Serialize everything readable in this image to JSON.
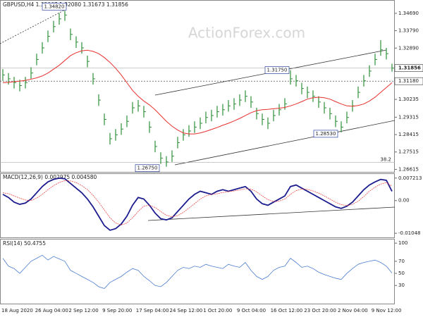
{
  "chart_data": [
    {
      "type": "ohlc",
      "title": "GBPUSD,H4  1.32067 1.32080 1.31673 1.31856",
      "watermark": "ActionForex.com",
      "color": "#2f8f3a",
      "close": [
        1.315,
        1.313,
        1.311,
        1.3095,
        1.311,
        1.316,
        1.323,
        1.329,
        1.335,
        1.34,
        1.344,
        1.346,
        1.336,
        1.332,
        1.329,
        1.322,
        1.313,
        1.302,
        1.292,
        1.282,
        1.284,
        1.287,
        1.291,
        1.298,
        1.299,
        1.296,
        1.288,
        1.278,
        1.272,
        1.27,
        1.273,
        1.28,
        1.284,
        1.286,
        1.288,
        1.29,
        1.293,
        1.294,
        1.296,
        1.297,
        1.299,
        1.3,
        1.302,
        1.304,
        1.301,
        1.295,
        1.292,
        1.29,
        1.294,
        1.297,
        1.3,
        1.313,
        1.312,
        1.308,
        1.306,
        1.304,
        1.301,
        1.298,
        1.295,
        1.291,
        1.288,
        1.293,
        1.299,
        1.306,
        1.312,
        1.317,
        1.323,
        1.328,
        1.326,
        1.31856
      ],
      "high": [
        1.318,
        1.316,
        1.314,
        1.3125,
        1.314,
        1.319,
        1.326,
        1.332,
        1.338,
        1.343,
        1.347,
        1.3482,
        1.339,
        1.335,
        1.332,
        1.325,
        1.316,
        1.305,
        1.295,
        1.285,
        1.287,
        1.29,
        1.294,
        1.301,
        1.302,
        1.299,
        1.291,
        1.281,
        1.275,
        1.273,
        1.276,
        1.283,
        1.287,
        1.289,
        1.291,
        1.293,
        1.296,
        1.297,
        1.299,
        1.3,
        1.302,
        1.303,
        1.305,
        1.307,
        1.304,
        1.298,
        1.295,
        1.293,
        1.297,
        1.3,
        1.303,
        1.3175,
        1.315,
        1.311,
        1.309,
        1.307,
        1.304,
        1.301,
        1.298,
        1.294,
        1.291,
        1.296,
        1.302,
        1.309,
        1.315,
        1.32,
        1.326,
        1.333,
        1.329,
        1.3208
      ],
      "low": [
        1.312,
        1.31,
        1.308,
        1.3065,
        1.308,
        1.313,
        1.32,
        1.326,
        1.332,
        1.337,
        1.341,
        1.343,
        1.333,
        1.329,
        1.326,
        1.319,
        1.31,
        1.299,
        1.289,
        1.279,
        1.281,
        1.284,
        1.288,
        1.295,
        1.296,
        1.293,
        1.285,
        1.275,
        1.269,
        1.2675,
        1.27,
        1.277,
        1.281,
        1.283,
        1.285,
        1.287,
        1.29,
        1.291,
        1.293,
        1.294,
        1.296,
        1.297,
        1.299,
        1.301,
        1.298,
        1.292,
        1.289,
        1.287,
        1.291,
        1.294,
        1.297,
        1.31,
        1.309,
        1.305,
        1.303,
        1.301,
        1.298,
        1.295,
        1.292,
        1.288,
        1.2853,
        1.29,
        1.296,
        1.303,
        1.309,
        1.314,
        1.32,
        1.325,
        1.323,
        1.3167
      ],
      "ma": {
        "color": "#e8302e",
        "values": [
          1.311,
          1.3112,
          1.3115,
          1.3118,
          1.3122,
          1.3128,
          1.3135,
          1.3145,
          1.316,
          1.318,
          1.32,
          1.3225,
          1.325,
          1.3265,
          1.3275,
          1.3278,
          1.3272,
          1.326,
          1.324,
          1.3215,
          1.3185,
          1.315,
          1.311,
          1.307,
          1.304,
          1.3015,
          1.2995,
          1.297,
          1.294,
          1.291,
          1.2885,
          1.2865,
          1.285,
          1.2845,
          1.2845,
          1.285,
          1.2858,
          1.2868,
          1.2878,
          1.289,
          1.29,
          1.2912,
          1.2925,
          1.294,
          1.2955,
          1.2965,
          1.297,
          1.2972,
          1.2975,
          1.2978,
          1.2982,
          1.299,
          1.3,
          1.3012,
          1.3025,
          1.3032,
          1.3035,
          1.3032,
          1.3025,
          1.3012,
          1.3,
          1.299,
          1.2988,
          1.2992,
          1.3,
          1.3015,
          1.3035,
          1.306,
          1.3085,
          1.311
        ]
      },
      "ylim": [
        1.26485,
        1.35341
      ],
      "yticks": [
        {
          "value": 1.3469,
          "label": "1.34690"
        },
        {
          "value": 1.3379,
          "label": "1.33790"
        },
        {
          "value": 1.3289,
          "label": "1.32890"
        },
        1.30235,
        1.29315,
        1.28415,
        1.27515,
        1.26615
      ],
      "last_price": 1.31856,
      "level": {
        "value": 1.3118,
        "label": "1.31180"
      },
      "fib": {
        "value": 1.2697,
        "label": "38.2"
      },
      "annotations": [
        {
          "value": 1.3482,
          "label": "1.34820"
        },
        {
          "value": 1.3175,
          "label": "1.31750"
        },
        {
          "value": 1.2853,
          "label": "1.28530"
        },
        {
          "value": 1.2675,
          "label": "1.26750"
        }
      ]
    },
    {
      "type": "line",
      "title": "MACD(12,26,9) 0.002975 0.004580",
      "series": [
        {
          "color": "#1c1c8f",
          "values": [
            0.002,
            0.001,
            -0.0005,
            -0.0012,
            -0.0008,
            0.0005,
            0.0025,
            0.0045,
            0.006,
            0.0068,
            0.0072,
            0.007,
            0.0055,
            0.004,
            0.0025,
            0.0005,
            -0.002,
            -0.005,
            -0.008,
            -0.0095,
            -0.009,
            -0.0075,
            -0.005,
            -0.0015,
            0.001,
            0.0005,
            -0.0015,
            -0.004,
            -0.0058,
            -0.0062,
            -0.0055,
            -0.0035,
            -0.0015,
            0.0005,
            0.002,
            0.003,
            0.0025,
            0.002,
            0.003,
            0.0035,
            0.003,
            0.0035,
            0.004,
            0.0045,
            0.003,
            0.0005,
            -0.001,
            -0.0015,
            -0.0005,
            0.0005,
            0.0015,
            0.0045,
            0.005,
            0.004,
            0.003,
            0.002,
            0.001,
            0.0,
            -0.001,
            -0.002,
            -0.0025,
            -0.0018,
            -0.0005,
            0.0015,
            0.0035,
            0.005,
            0.006,
            0.0068,
            0.0065,
            0.002975
          ]
        },
        {
          "color": "#e8302e",
          "values": [
            0.0025,
            0.0022,
            0.0015,
            0.0008,
            0.0002,
            0.0,
            0.0008,
            0.002,
            0.0035,
            0.0048,
            0.0058,
            0.0064,
            0.0063,
            0.0058,
            0.0048,
            0.0035,
            0.0017,
            -0.0005,
            -0.003,
            -0.0055,
            -0.0072,
            -0.0078,
            -0.0072,
            -0.0055,
            -0.0035,
            -0.0018,
            -0.0015,
            -0.0022,
            -0.0035,
            -0.0047,
            -0.0052,
            -0.0048,
            -0.0038,
            -0.0024,
            -0.001,
            0.0005,
            0.0015,
            0.002,
            0.0022,
            0.0026,
            0.0029,
            0.0031,
            0.0034,
            0.0038,
            0.0037,
            0.0028,
            0.0015,
            0.0003,
            -0.0003,
            -0.0002,
            0.0005,
            0.002,
            0.0032,
            0.0037,
            0.0036,
            0.0031,
            0.0024,
            0.0015,
            0.0005,
            -0.0005,
            -0.0013,
            -0.0016,
            -0.0012,
            -0.0002,
            0.0013,
            0.003,
            0.0043,
            0.0053,
            0.0058,
            0.00458
          ]
        }
      ],
      "ylim": [
        -0.0118,
        0.008525
      ],
      "yticks": [
        0.007213,
        {
          "value": 0,
          "label": "0.00"
        },
        -0.01048
      ]
    },
    {
      "type": "line",
      "title": "RSI(14) 50.4755",
      "series": [
        {
          "color": "#4a7ccf",
          "values": [
            75,
            62,
            58,
            50,
            60,
            70,
            75,
            80,
            72,
            78,
            74,
            70,
            55,
            50,
            45,
            40,
            35,
            28,
            25,
            35,
            40,
            45,
            52,
            58,
            55,
            45,
            38,
            30,
            28,
            35,
            45,
            55,
            60,
            58,
            62,
            60,
            65,
            62,
            60,
            58,
            65,
            62,
            60,
            68,
            55,
            45,
            40,
            45,
            55,
            60,
            62,
            75,
            68,
            60,
            62,
            58,
            52,
            48,
            45,
            42,
            40,
            50,
            58,
            65,
            68,
            70,
            72,
            68,
            62,
            50.4755
          ]
        }
      ],
      "ylim": [
        0,
        106
      ],
      "yticks": [
        100,
        70,
        50,
        30
      ],
      "x_labels": [
        "18 Aug 2020",
        "26 Aug 04:00",
        "2 Sep 12:00",
        "9 Sep 20:00",
        "17 Sep 04:00",
        "24 Sep 12:00",
        "1 Oct 20:00",
        "9 Oct 04:00",
        "16 Oct 12:00",
        "23 Oct 20:00",
        "2 Nov 04:00",
        "9 Nov 12:00"
      ]
    }
  ]
}
